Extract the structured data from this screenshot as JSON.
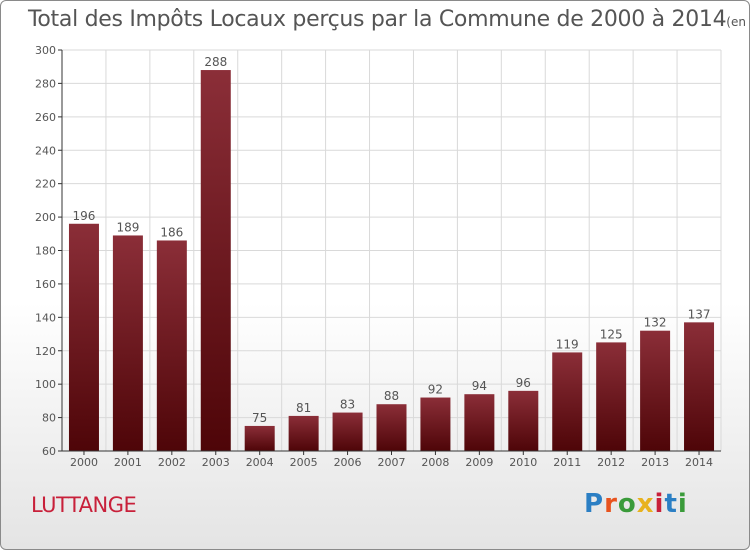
{
  "title": "Total des Impôts Locaux perçus par la Commune de 2000 à 2014",
  "unit": "(en milliers d'€)",
  "commune": "LUTTANGE",
  "logo": {
    "text": "Proxiti",
    "colors": [
      "#2b7fc4",
      "#e8531e",
      "#3a9b3a",
      "#e8b21e",
      "#c8203a",
      "#2b7fc4",
      "#3a9b3a"
    ]
  },
  "colors": {
    "bar_top": "#8b2e38",
    "bar_bottom": "#4e0508",
    "axis": "#333333",
    "grid": "#d9d9d9",
    "text": "#555555"
  },
  "chart_data": {
    "type": "bar",
    "categories": [
      "2000",
      "2001",
      "2002",
      "2003",
      "2004",
      "2005",
      "2006",
      "2007",
      "2008",
      "2009",
      "2010",
      "2011",
      "2012",
      "2013",
      "2014"
    ],
    "values": [
      196,
      189,
      186,
      288,
      75,
      81,
      83,
      88,
      92,
      94,
      96,
      119,
      125,
      132,
      137
    ],
    "ylim": [
      60,
      300
    ],
    "yticks": [
      60,
      80,
      100,
      120,
      140,
      160,
      180,
      200,
      220,
      240,
      260,
      280,
      300
    ],
    "grid": true
  }
}
